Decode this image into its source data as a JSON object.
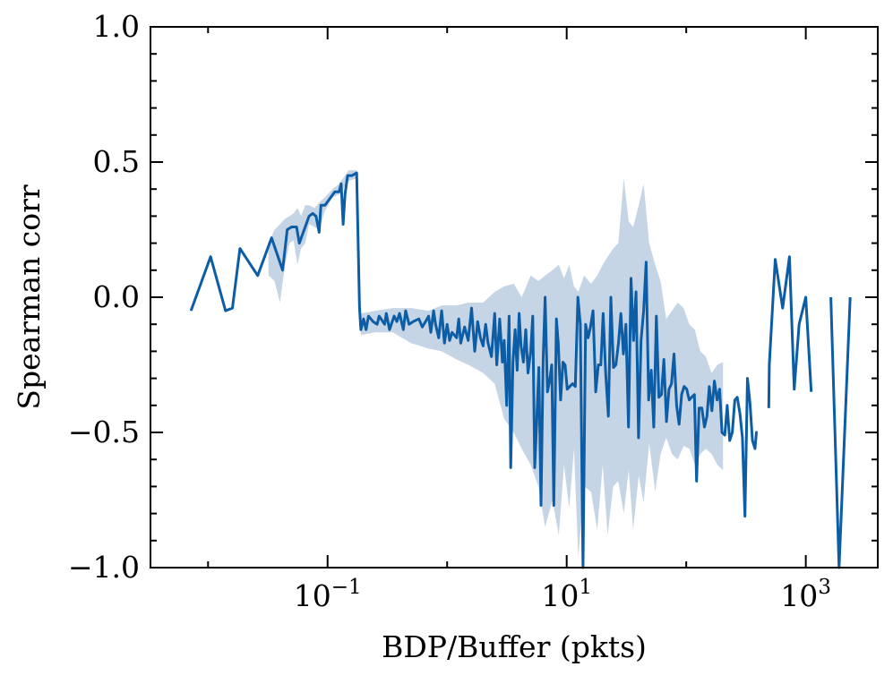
{
  "colors": {
    "line": "#0C5DA5",
    "band": "#C6D5E6",
    "axis": "#000000",
    "background": "#FFFFFF"
  },
  "chart_data": {
    "type": "line",
    "title": "",
    "xlabel": "BDP/Buffer (pkts)",
    "ylabel": "Spearman corr",
    "xscale": "log",
    "xlim": [
      0.0033,
      4000
    ],
    "ylim": [
      -1.0,
      1.0
    ],
    "grid": false,
    "legend": "none",
    "x_ticks": [
      {
        "value": 0.1,
        "base": "10",
        "exp": "−1"
      },
      {
        "value": 10,
        "base": "10",
        "exp": "1"
      },
      {
        "value": 1000,
        "base": "10",
        "exp": "3"
      }
    ],
    "y_ticks": [
      {
        "value": 1.0,
        "label": "1.0"
      },
      {
        "value": 0.5,
        "label": "0.5"
      },
      {
        "value": 0.0,
        "label": "0.0"
      },
      {
        "value": -0.5,
        "label": "−0.5"
      },
      {
        "value": -1.0,
        "label": "−1.0"
      }
    ],
    "series": [
      {
        "segments": [
          [
            [
              0.0072,
              -0.05
            ],
            [
              0.0105,
              0.15
            ],
            [
              0.014,
              -0.05
            ],
            [
              0.016,
              -0.04
            ],
            [
              0.0185,
              0.18
            ],
            [
              0.026,
              0.08
            ],
            [
              0.034,
              0.22
            ],
            [
              0.042,
              0.1
            ],
            [
              0.046,
              0.25
            ],
            [
              0.05,
              0.26
            ],
            [
              0.055,
              0.26
            ],
            [
              0.058,
              0.2
            ],
            [
              0.07,
              0.3
            ],
            [
              0.075,
              0.31
            ],
            [
              0.08,
              0.3
            ],
            [
              0.085,
              0.24
            ],
            [
              0.088,
              0.34
            ],
            [
              0.095,
              0.34
            ],
            [
              0.115,
              0.39
            ],
            [
              0.125,
              0.39
            ],
            [
              0.13,
              0.42
            ],
            [
              0.135,
              0.27
            ],
            [
              0.14,
              0.38
            ],
            [
              0.147,
              0.45
            ],
            [
              0.16,
              0.45
            ],
            [
              0.175,
              0.46
            ],
            [
              0.185,
              -0.04
            ],
            [
              0.19,
              -0.12
            ],
            [
              0.2,
              -0.08
            ],
            [
              0.21,
              -0.12
            ],
            [
              0.22,
              -0.07
            ],
            [
              0.24,
              -0.09
            ],
            [
              0.26,
              -0.1
            ],
            [
              0.27,
              -0.07
            ],
            [
              0.3,
              -0.1
            ],
            [
              0.31,
              -0.06
            ],
            [
              0.33,
              -0.12
            ],
            [
              0.36,
              -0.07
            ],
            [
              0.38,
              -0.09
            ],
            [
              0.4,
              -0.06
            ],
            [
              0.43,
              -0.12
            ],
            [
              0.45,
              -0.05
            ],
            [
              0.48,
              -0.1
            ],
            [
              0.52,
              -0.09
            ],
            [
              0.58,
              -0.08
            ],
            [
              0.62,
              -0.11
            ],
            [
              0.66,
              -0.09
            ],
            [
              0.7,
              -0.07
            ],
            [
              0.73,
              -0.13
            ],
            [
              0.77,
              -0.05
            ],
            [
              0.8,
              -0.1
            ],
            [
              0.85,
              -0.15
            ],
            [
              0.9,
              -0.05
            ],
            [
              0.95,
              -0.17
            ],
            [
              1.0,
              -0.1
            ],
            [
              1.05,
              -0.16
            ],
            [
              1.1,
              -0.13
            ],
            [
              1.2,
              -0.15
            ],
            [
              1.25,
              -0.08
            ],
            [
              1.3,
              -0.17
            ],
            [
              1.4,
              -0.11
            ],
            [
              1.5,
              -0.16
            ],
            [
              1.6,
              -0.04
            ],
            [
              1.7,
              -0.2
            ],
            [
              1.8,
              -0.09
            ],
            [
              1.9,
              -0.15
            ],
            [
              2.0,
              -0.18
            ],
            [
              2.1,
              -0.1
            ],
            [
              2.2,
              -0.17
            ],
            [
              2.35,
              -0.22
            ],
            [
              2.5,
              -0.06
            ],
            [
              2.6,
              -0.25
            ],
            [
              2.75,
              -0.08
            ],
            [
              2.9,
              -0.24
            ],
            [
              3.0,
              -0.16
            ],
            [
              3.15,
              -0.4
            ],
            [
              3.3,
              -0.07
            ],
            [
              3.4,
              -0.63
            ],
            [
              3.55,
              -0.24
            ],
            [
              3.7,
              -0.12
            ],
            [
              3.85,
              -0.27
            ],
            [
              4.0,
              -0.06
            ],
            [
              4.15,
              -0.18
            ],
            [
              4.35,
              -0.24
            ],
            [
              4.55,
              -0.12
            ],
            [
              4.75,
              -0.28
            ],
            [
              5.0,
              -0.2
            ],
            [
              5.2,
              -0.07
            ],
            [
              5.4,
              -0.63
            ],
            [
              5.6,
              -0.47
            ],
            [
              5.85,
              -0.26
            ],
            [
              6.1,
              -0.77
            ],
            [
              6.35,
              -0.23
            ],
            [
              6.6,
              0.0
            ],
            [
              6.9,
              -0.35
            ],
            [
              7.2,
              -0.31
            ],
            [
              7.5,
              -0.25
            ],
            [
              7.8,
              -0.77
            ],
            [
              8.2,
              -0.08
            ],
            [
              8.5,
              -0.17
            ],
            [
              8.9,
              -0.38
            ],
            [
              9.3,
              -0.24
            ],
            [
              9.7,
              -0.25
            ],
            [
              10.1,
              -0.34
            ],
            [
              10.6,
              -0.33
            ],
            [
              11.2,
              -0.32
            ],
            [
              11.8,
              -0.33
            ],
            [
              12.4,
              0.0
            ],
            [
              13.0,
              -0.1
            ],
            [
              13.7,
              -1.0
            ],
            [
              14.4,
              -0.1
            ],
            [
              15.1,
              -0.15
            ],
            [
              15.8,
              -0.11
            ],
            [
              16.6,
              -0.05
            ],
            [
              17.5,
              -0.35
            ],
            [
              18.4,
              -0.25
            ],
            [
              19.3,
              -0.25
            ],
            [
              20.2,
              -0.06
            ],
            [
              21.2,
              -0.28
            ],
            [
              22.3,
              -0.44
            ],
            [
              23.4,
              0.0
            ],
            [
              24.6,
              -0.26
            ],
            [
              25.8,
              -0.25
            ],
            [
              27.1,
              -0.17
            ],
            [
              28.4,
              -0.06
            ],
            [
              29.8,
              -0.21
            ],
            [
              31.3,
              -0.1
            ],
            [
              32.9,
              -0.48
            ],
            [
              34.5,
              0.07
            ],
            [
              36.2,
              -0.16
            ],
            [
              38.0,
              0.02
            ],
            [
              39.9,
              -0.52
            ],
            [
              41.9,
              -0.16
            ],
            [
              44.0,
              -0.05
            ],
            [
              46.2,
              0.13
            ],
            [
              48.5,
              -0.38
            ],
            [
              51.0,
              -0.27
            ],
            [
              53.5,
              -0.48
            ],
            [
              56.2,
              -0.07
            ],
            [
              59.0,
              -0.37
            ],
            [
              62.0,
              -0.36
            ],
            [
              65.0,
              -0.23
            ],
            [
              68.3,
              -0.46
            ],
            [
              71.7,
              -0.34
            ],
            [
              75.3,
              -0.32
            ],
            [
              79.0,
              -0.21
            ],
            [
              83.0,
              -0.4
            ],
            [
              87.1,
              -0.47
            ],
            [
              91.5,
              -0.36
            ],
            [
              96.0,
              -0.33
            ],
            [
              101,
              -0.34
            ],
            [
              106,
              -0.38
            ],
            [
              111,
              -0.37
            ],
            [
              117,
              -0.36
            ],
            [
              122,
              -0.68
            ],
            [
              128,
              -0.41
            ],
            [
              135,
              -0.41
            ],
            [
              142,
              -0.48
            ],
            [
              149,
              -0.44
            ],
            [
              156,
              -0.33
            ],
            [
              164,
              -0.42
            ],
            [
              172,
              -0.31
            ],
            [
              181,
              -0.38
            ],
            [
              190,
              -0.34
            ],
            [
              199,
              -0.5
            ],
            [
              210,
              -0.51
            ],
            [
              220,
              -0.4
            ],
            [
              231,
              -0.53
            ],
            [
              243,
              -0.5
            ],
            [
              255,
              -0.38
            ],
            [
              267,
              -0.37
            ],
            [
              281,
              -0.43
            ],
            [
              295,
              -0.52
            ],
            [
              310,
              -0.81
            ],
            [
              325,
              -0.3
            ],
            [
              341,
              -0.39
            ],
            [
              358,
              -0.53
            ],
            [
              376,
              -0.56
            ],
            [
              386,
              -0.5
            ],
            [
              395,
              -0.5
            ]
          ],
          [
            [
              490,
              -0.41
            ],
            [
              495,
              -0.25
            ],
            [
              555,
              0.14
            ],
            [
              640,
              -0.04
            ],
            [
              730,
              0.15
            ],
            [
              800,
              -0.34
            ],
            [
              880,
              -0.1
            ],
            [
              1000,
              0.0
            ],
            [
              1110,
              -0.35
            ]
          ],
          [
            [
              1620,
              0.0
            ],
            [
              1900,
              -1.0
            ],
            [
              2350,
              0.0
            ]
          ]
        ],
        "band": [
          [
            0.032,
            0.08,
            0.2
          ],
          [
            0.036,
            0.06,
            0.25
          ],
          [
            0.04,
            -0.02,
            0.27
          ],
          [
            0.044,
            0.12,
            0.29
          ],
          [
            0.048,
            0.2,
            0.3
          ],
          [
            0.052,
            0.21,
            0.31
          ],
          [
            0.056,
            0.12,
            0.33
          ],
          [
            0.06,
            0.18,
            0.3
          ],
          [
            0.065,
            0.2,
            0.34
          ],
          [
            0.07,
            0.27,
            0.34
          ],
          [
            0.078,
            0.26,
            0.33
          ],
          [
            0.085,
            0.25,
            0.35
          ],
          [
            0.095,
            0.32,
            0.37
          ],
          [
            0.11,
            0.37,
            0.4
          ],
          [
            0.125,
            0.38,
            0.42
          ],
          [
            0.15,
            0.43,
            0.47
          ],
          [
            0.175,
            0.44,
            0.47
          ],
          [
            0.19,
            -0.14,
            -0.06
          ],
          [
            0.25,
            -0.13,
            -0.05
          ],
          [
            0.35,
            -0.13,
            -0.04
          ],
          [
            0.5,
            -0.17,
            -0.04
          ],
          [
            0.7,
            -0.19,
            -0.05
          ],
          [
            0.9,
            -0.2,
            -0.03
          ],
          [
            1.2,
            -0.23,
            -0.03
          ],
          [
            1.5,
            -0.25,
            -0.02
          ],
          [
            2.0,
            -0.28,
            -0.02
          ],
          [
            2.5,
            -0.32,
            0.02
          ],
          [
            3.0,
            -0.45,
            0.04
          ],
          [
            3.6,
            -0.5,
            0.05
          ],
          [
            4.2,
            -0.56,
            0.0
          ],
          [
            5.0,
            -0.62,
            0.08
          ],
          [
            5.8,
            -0.7,
            0.06
          ],
          [
            6.6,
            -0.85,
            0.08
          ],
          [
            7.6,
            -0.75,
            0.1
          ],
          [
            8.6,
            -0.88,
            0.12
          ],
          [
            9.5,
            -0.62,
            0.07
          ],
          [
            10.5,
            -0.78,
            0.12
          ],
          [
            11.5,
            -0.56,
            0.04
          ],
          [
            12.5,
            -0.96,
            0.02
          ],
          [
            14.0,
            -0.7,
            0.08
          ],
          [
            16.0,
            -0.72,
            0.05
          ],
          [
            18.0,
            -0.86,
            0.08
          ],
          [
            20.0,
            -0.62,
            0.12
          ],
          [
            22.0,
            -0.88,
            0.15
          ],
          [
            24.5,
            -0.7,
            0.18
          ],
          [
            27.0,
            -0.68,
            0.2
          ],
          [
            30.0,
            -0.8,
            0.44
          ],
          [
            33.0,
            -0.64,
            0.28
          ],
          [
            36.0,
            -0.86,
            0.26
          ],
          [
            40.0,
            -0.66,
            0.34
          ],
          [
            44.0,
            -0.76,
            0.42
          ],
          [
            49.0,
            -0.54,
            0.2
          ],
          [
            55.0,
            -0.72,
            0.12
          ],
          [
            61.0,
            -0.58,
            0.06
          ],
          [
            68.0,
            -0.52,
            -0.08
          ],
          [
            76.0,
            -0.58,
            -0.05
          ],
          [
            85.0,
            -0.6,
            -0.02
          ],
          [
            95.0,
            -0.55,
            -0.04
          ],
          [
            106,
            -0.56,
            -0.1
          ],
          [
            118,
            -0.62,
            -0.12
          ],
          [
            131,
            -0.58,
            -0.2
          ],
          [
            146,
            -0.56,
            -0.22
          ],
          [
            163,
            -0.58,
            -0.28
          ],
          [
            182,
            -0.62,
            -0.25
          ],
          [
            203,
            -0.64,
            -0.24
          ]
        ]
      }
    ]
  }
}
